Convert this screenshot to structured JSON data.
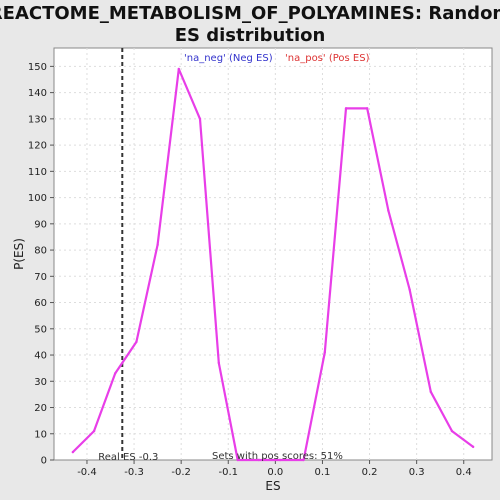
{
  "chart_data": {
    "type": "line",
    "title_line1": "REACTOME_METABOLISM_OF_POLYAMINES: Random",
    "title_line2": "ES distribution",
    "xlabel": "ES",
    "ylabel": "P(ES)",
    "xlim": [
      -0.47,
      0.46
    ],
    "ylim": [
      0,
      157
    ],
    "xticks": [
      -0.4,
      -0.3,
      -0.2,
      -0.1,
      0.0,
      0.1,
      0.2,
      0.3,
      0.4
    ],
    "xtick_labels": [
      "-0.4",
      "-0.3",
      "-0.2",
      "-0.1",
      "0.0",
      "0.1",
      "0.2",
      "0.3",
      "0.4"
    ],
    "yticks": [
      0,
      10,
      20,
      30,
      40,
      50,
      60,
      70,
      80,
      90,
      100,
      110,
      120,
      130,
      140,
      150
    ],
    "grid": true,
    "legend": {
      "neg": {
        "label": "'na_neg' (Neg ES)",
        "color": "#3333cc"
      },
      "pos": {
        "label": "'na_pos' (Pos ES)",
        "color": "#dd3333"
      }
    },
    "series": [
      {
        "color": "#e83ee8",
        "x": [
          -0.43,
          -0.385,
          -0.34,
          -0.295,
          -0.25,
          -0.205,
          -0.16,
          -0.12,
          -0.08,
          -0.035,
          0.01,
          0.06,
          0.105,
          0.15,
          0.195,
          0.24,
          0.285,
          0.33,
          0.375,
          0.42
        ],
        "y": [
          3,
          11,
          33,
          45,
          82,
          149,
          130,
          37,
          0,
          0,
          0,
          0,
          41,
          134,
          134,
          95,
          65,
          26,
          11,
          5
        ]
      }
    ],
    "real_es": {
      "x": -0.325,
      "label": "Real ES -0.3"
    },
    "footnote": "Sets with pos scores: 51%",
    "colors": {
      "line": "#e83ee8",
      "background": "#e8e8e8",
      "plot_bg": "#ffffff"
    }
  }
}
